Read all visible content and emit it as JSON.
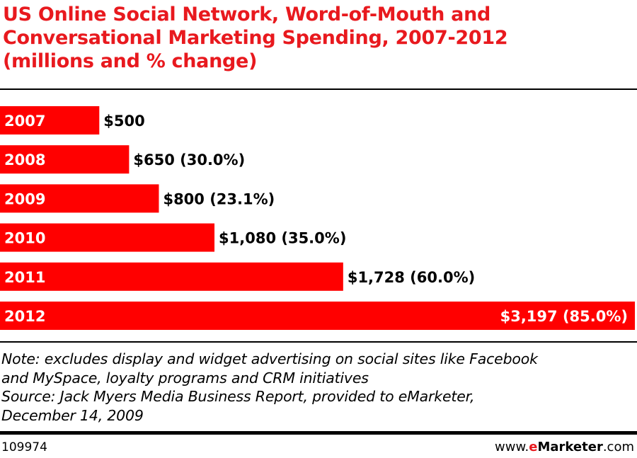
{
  "title_lines": [
    "US Online Social Network, Word-of-Mouth and",
    "Conversational Marketing Spending, 2007-2012",
    "(millions and % change)"
  ],
  "chart_data": {
    "type": "bar",
    "orientation": "horizontal",
    "title": "US Online Social Network, Word-of-Mouth and Conversational Marketing Spending, 2007-2012 (millions and % change)",
    "categories": [
      "2007",
      "2008",
      "2009",
      "2010",
      "2011",
      "2012"
    ],
    "values": [
      500,
      650,
      800,
      1080,
      1728,
      3197
    ],
    "value_labels": [
      "$500",
      "$650 (30.0%)",
      "$800 (23.1%)",
      "$1,080 (35.0%)",
      "$1,728 (60.0%)",
      "$3,197 (85.0%)"
    ],
    "xlim": [
      0,
      3197
    ],
    "grid": false,
    "legend": "none",
    "bar_color": "#ff0000"
  },
  "notes": [
    "Note: excludes display and widget advertising on social sites like Facebook",
    "and MySpace, loyalty programs and CRM initiatives",
    "Source: Jack Myers Media Business Report, provided to eMarketer,",
    "December 14, 2009"
  ],
  "footer": {
    "chart_id": "109974",
    "brand_prefix": "www.",
    "brand_e": "e",
    "brand_name": "Marketer",
    "brand_suffix": ".com"
  }
}
